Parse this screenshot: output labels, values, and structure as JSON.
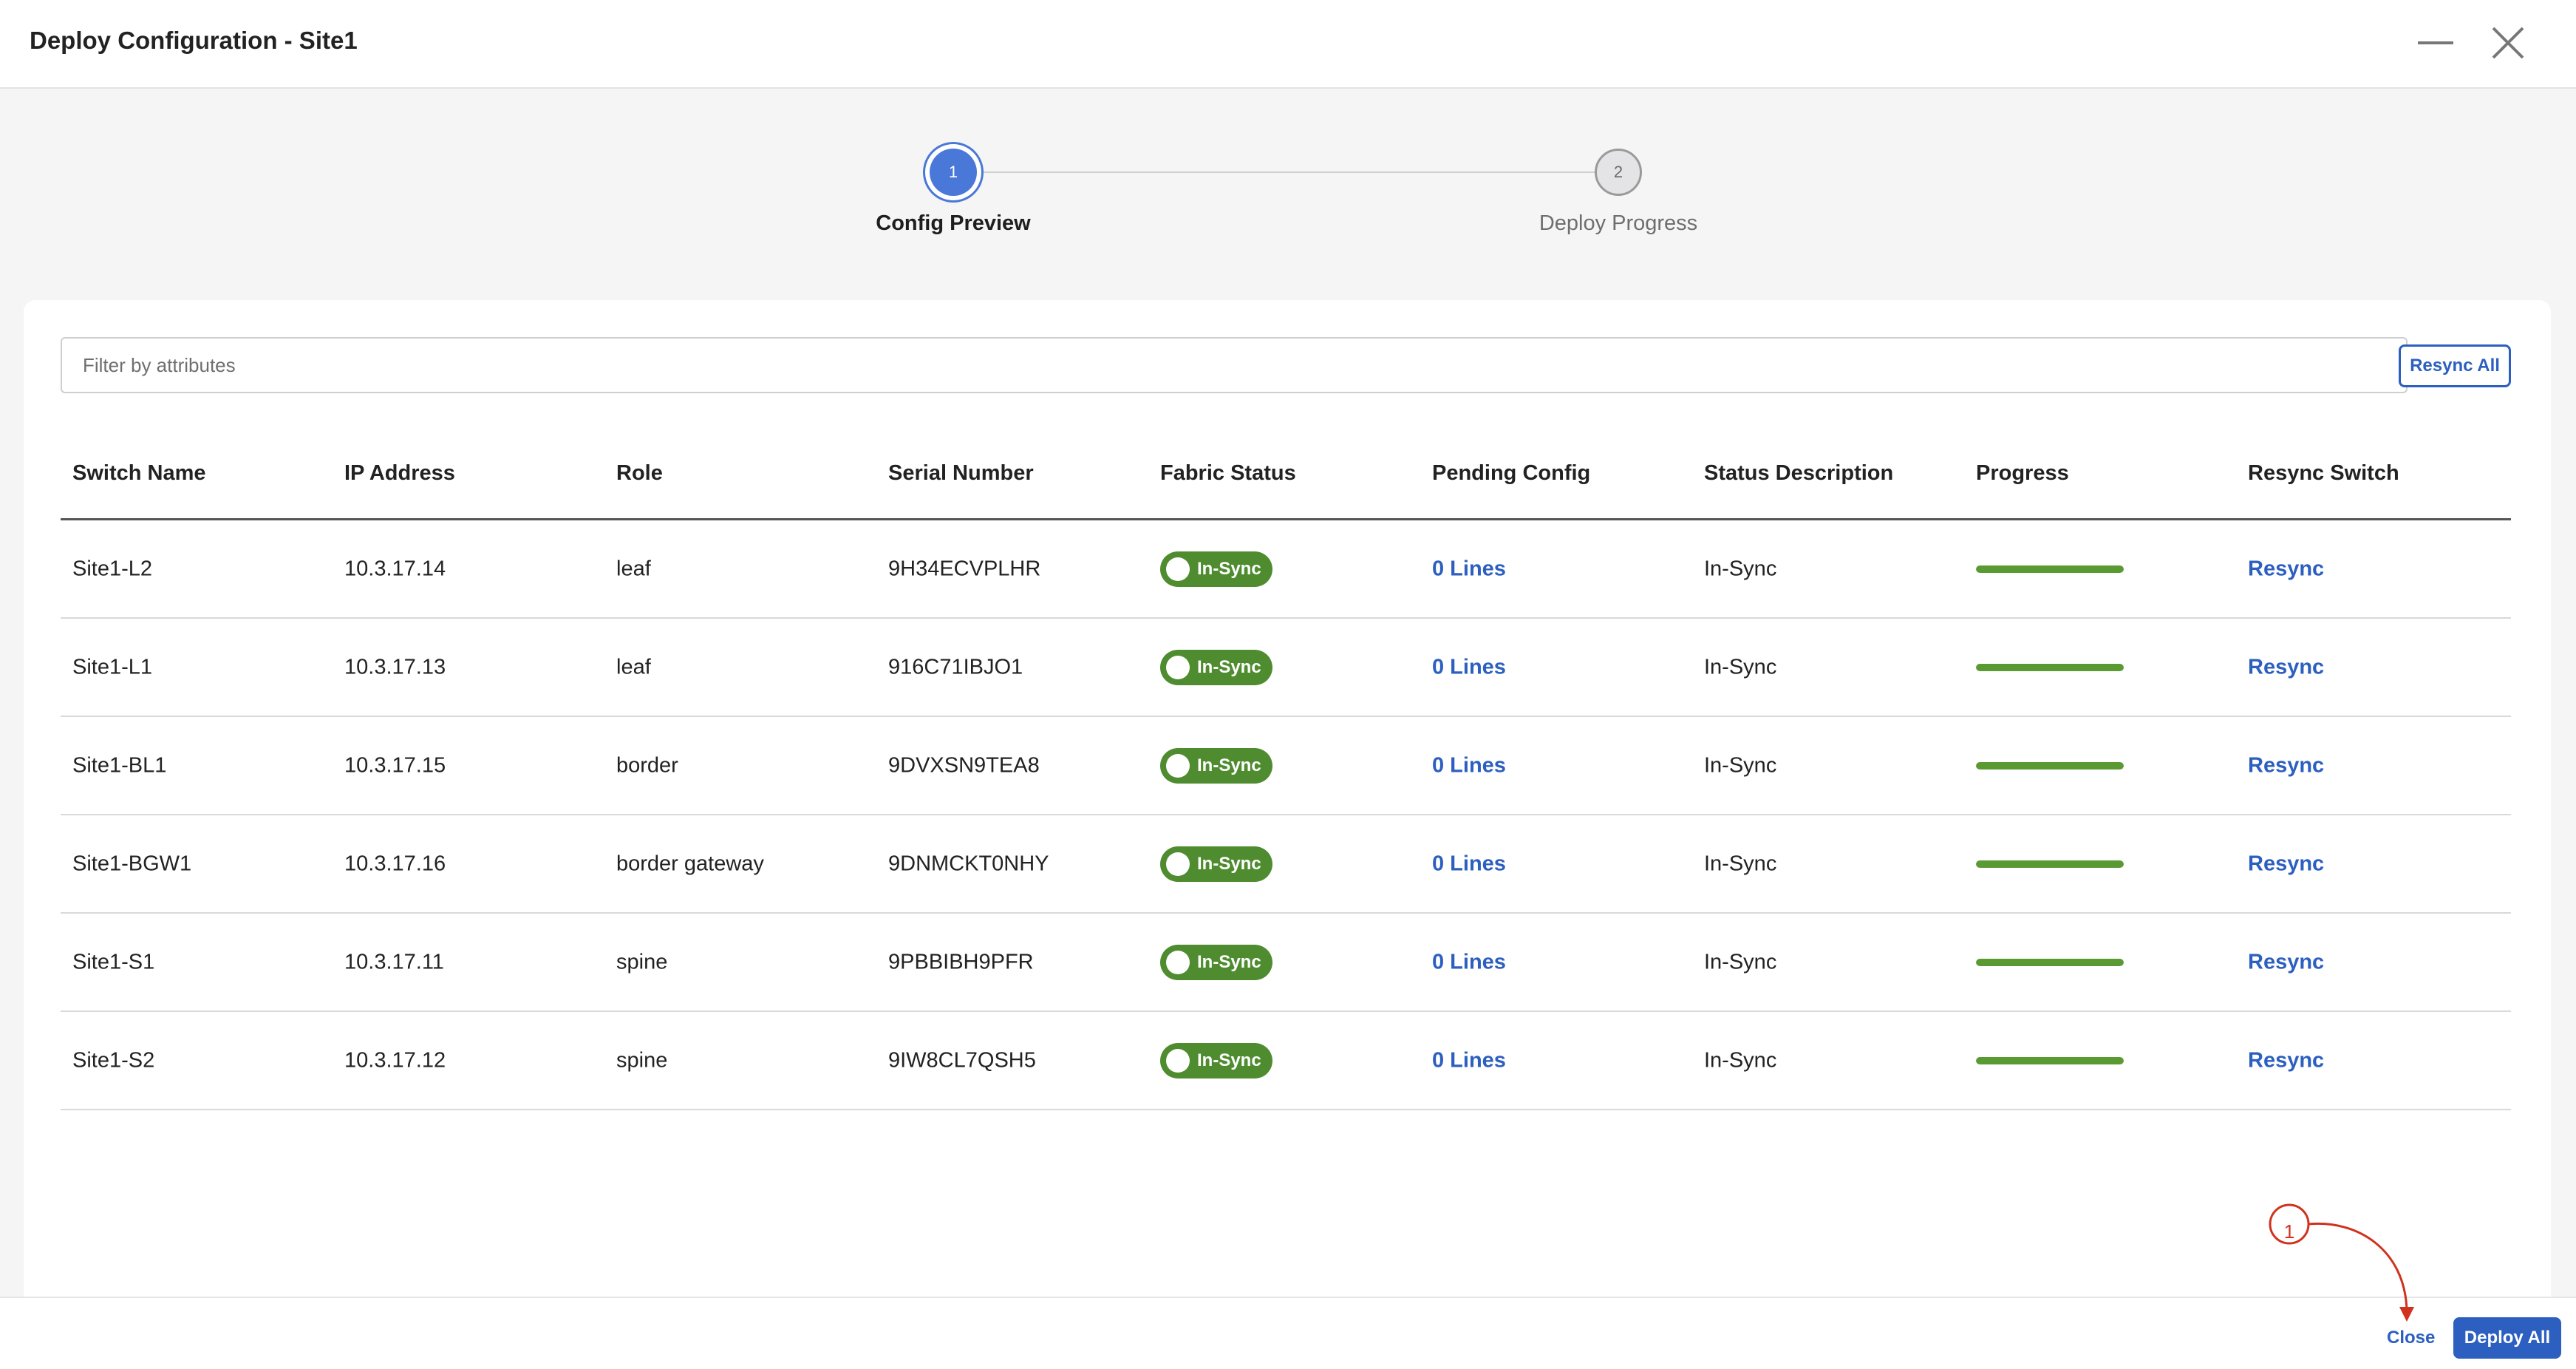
{
  "window": {
    "title": "Deploy Configuration - Site1"
  },
  "stepper": {
    "steps": [
      {
        "number": "1",
        "label": "Config Preview"
      },
      {
        "number": "2",
        "label": "Deploy Progress"
      }
    ]
  },
  "filter": {
    "placeholder": "Filter by attributes",
    "value": ""
  },
  "toolbar": {
    "resync_all_label": "Resync All"
  },
  "table": {
    "columns": [
      "Switch Name",
      "IP Address",
      "Role",
      "Serial Number",
      "Fabric Status",
      "Pending Config",
      "Status Description",
      "Progress",
      "Resync Switch"
    ],
    "rows": [
      {
        "switch_name": "Site1-L2",
        "ip": "10.3.17.14",
        "role": "leaf",
        "serial": "9H34ECVPLHR",
        "fabric_status": "In-Sync",
        "pending": "0 Lines",
        "status_desc": "In-Sync",
        "progress": 100,
        "action": "Resync"
      },
      {
        "switch_name": "Site1-L1",
        "ip": "10.3.17.13",
        "role": "leaf",
        "serial": "916C71IBJO1",
        "fabric_status": "In-Sync",
        "pending": "0 Lines",
        "status_desc": "In-Sync",
        "progress": 100,
        "action": "Resync"
      },
      {
        "switch_name": "Site1-BL1",
        "ip": "10.3.17.15",
        "role": "border",
        "serial": "9DVXSN9TEA8",
        "fabric_status": "In-Sync",
        "pending": "0 Lines",
        "status_desc": "In-Sync",
        "progress": 100,
        "action": "Resync"
      },
      {
        "switch_name": "Site1-BGW1",
        "ip": "10.3.17.16",
        "role": "border gateway",
        "serial": "9DNMCKT0NHY",
        "fabric_status": "In-Sync",
        "pending": "0 Lines",
        "status_desc": "In-Sync",
        "progress": 100,
        "action": "Resync"
      },
      {
        "switch_name": "Site1-S1",
        "ip": "10.3.17.11",
        "role": "spine",
        "serial": "9PBBIBH9PFR",
        "fabric_status": "In-Sync",
        "pending": "0 Lines",
        "status_desc": "In-Sync",
        "progress": 100,
        "action": "Resync"
      },
      {
        "switch_name": "Site1-S2",
        "ip": "10.3.17.12",
        "role": "spine",
        "serial": "9IW8CL7QSH5",
        "fabric_status": "In-Sync",
        "pending": "0 Lines",
        "status_desc": "In-Sync",
        "progress": 100,
        "action": "Resync"
      }
    ]
  },
  "footer": {
    "close_label": "Close",
    "deploy_all_label": "Deploy All"
  },
  "annotation": {
    "number": "1"
  },
  "colors": {
    "accent": "#2c5fbf",
    "step_active": "#4a78d8",
    "in_sync": "#4f8c30",
    "progress": "#5a9a33",
    "annotation": "#d0321e"
  },
  "icons": {
    "minimize": "minimize-icon",
    "close": "close-icon",
    "toggle": "toggle-icon"
  }
}
